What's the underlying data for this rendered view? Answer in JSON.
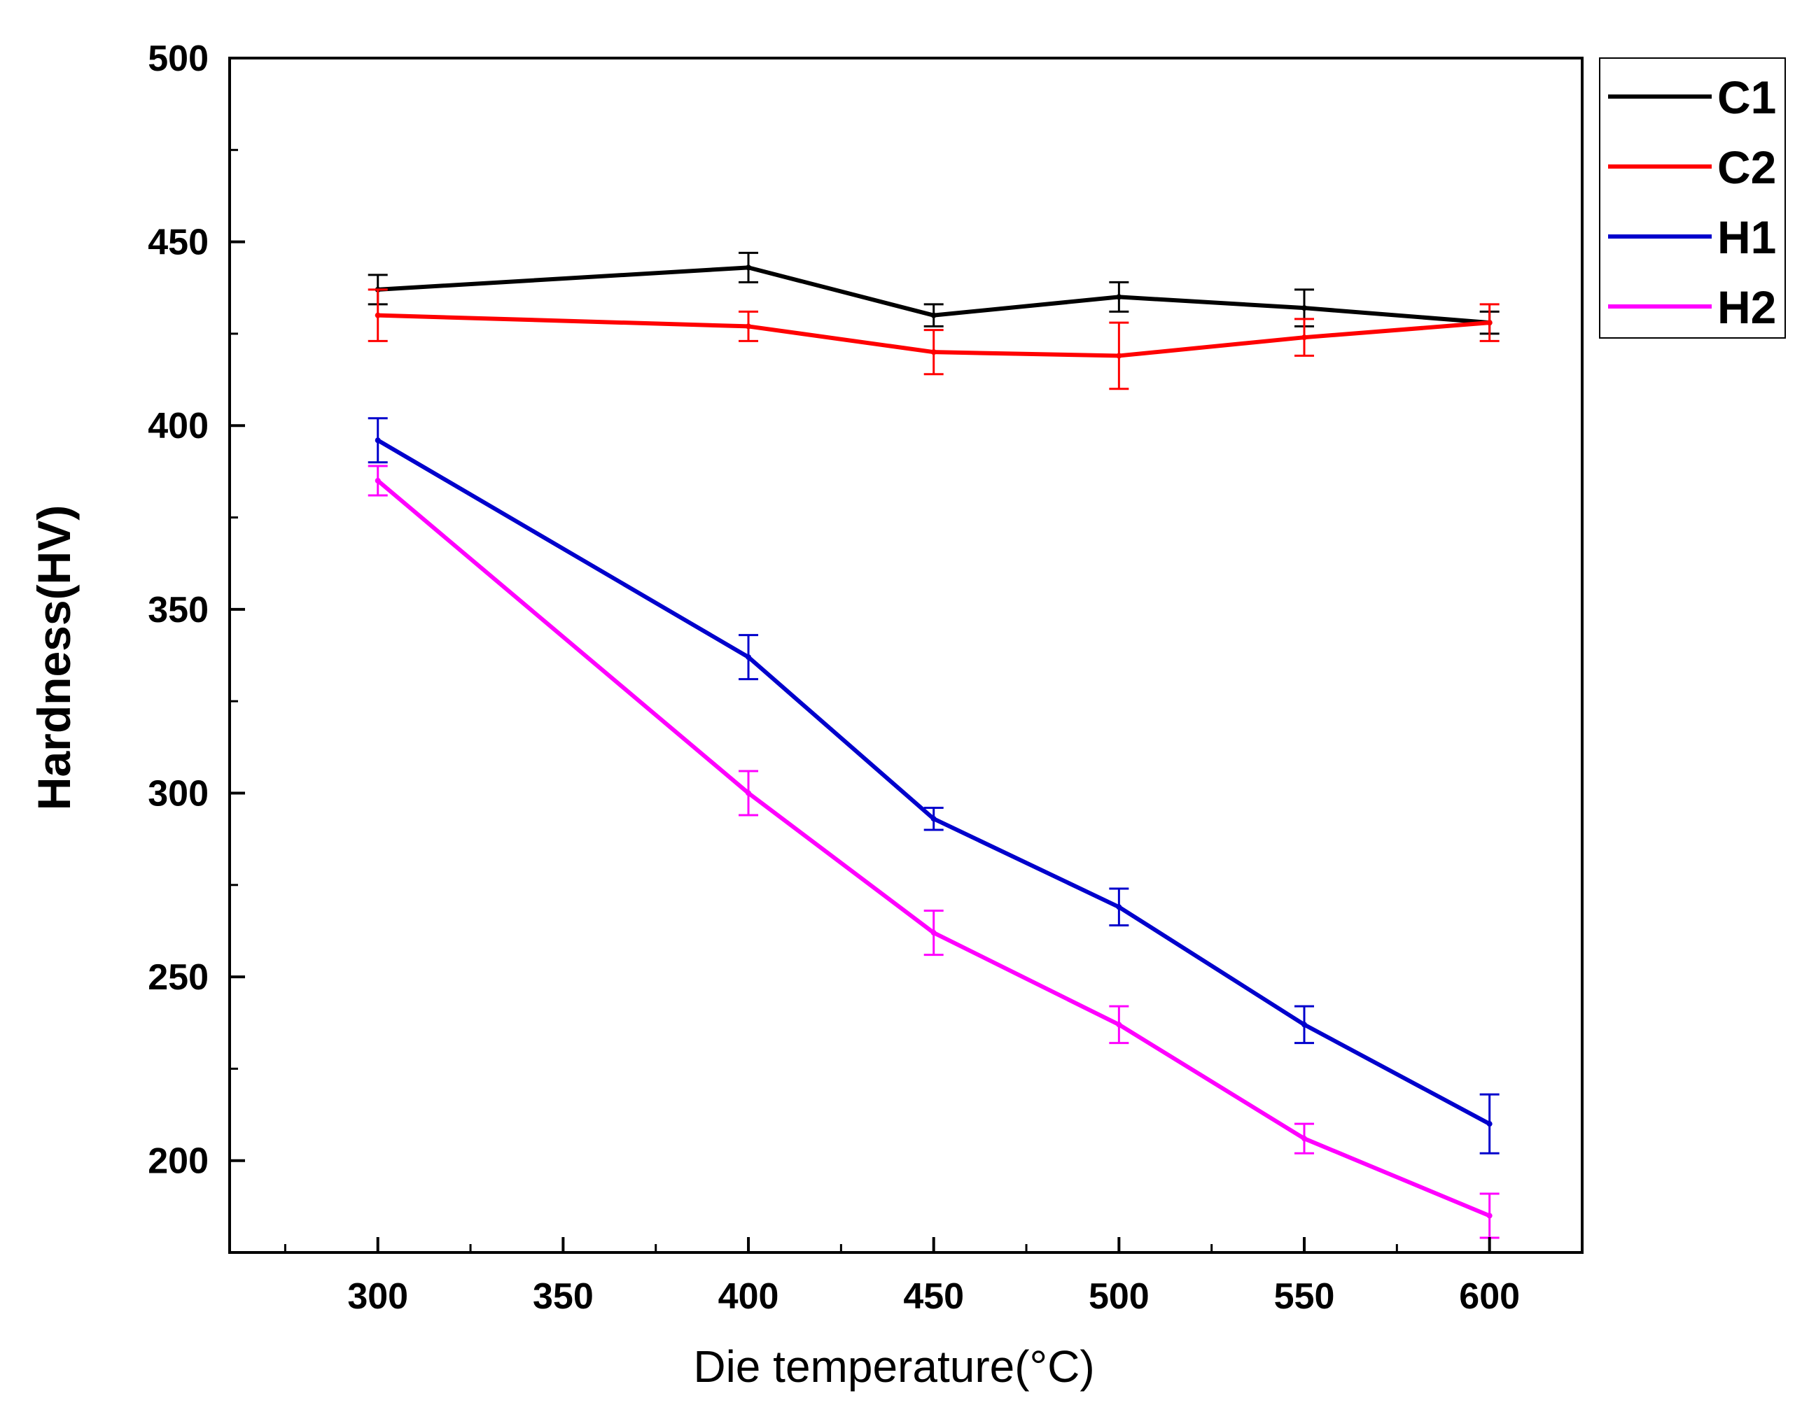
{
  "chart_data": {
    "type": "line",
    "title": "",
    "xlabel": "Die temperature(°C)",
    "ylabel": "Hardness(HV)",
    "xlim": [
      260,
      625
    ],
    "ylim": [
      175,
      500
    ],
    "x_ticks": [
      300,
      350,
      400,
      450,
      500,
      550,
      600
    ],
    "y_ticks": [
      200,
      250,
      300,
      350,
      400,
      450,
      500
    ],
    "x_tick_labels": [
      "300",
      "350",
      "400",
      "450",
      "500",
      "550",
      "600"
    ],
    "y_tick_labels": [
      "200",
      "250",
      "300",
      "350",
      "400",
      "450",
      "500"
    ],
    "x": [
      300,
      400,
      450,
      500,
      550,
      600
    ],
    "legend_position": "top-right-outside",
    "series": [
      {
        "name": "C1",
        "color": "#000000",
        "values": [
          437,
          443,
          430,
          435,
          432,
          428
        ],
        "errors": [
          4,
          4,
          3,
          4,
          5,
          3
        ]
      },
      {
        "name": "C2",
        "color": "#ff0000",
        "values": [
          430,
          427,
          420,
          419,
          424,
          428
        ],
        "errors": [
          7,
          4,
          6,
          9,
          5,
          5
        ]
      },
      {
        "name": "H1",
        "color": "#0000cc",
        "values": [
          396,
          337,
          293,
          269,
          237,
          210
        ],
        "errors": [
          6,
          6,
          3,
          5,
          5,
          8
        ]
      },
      {
        "name": "H2",
        "color": "#ff00ff",
        "values": [
          385,
          300,
          262,
          237,
          206,
          185
        ],
        "errors": [
          4,
          6,
          6,
          5,
          4,
          6
        ]
      }
    ]
  }
}
